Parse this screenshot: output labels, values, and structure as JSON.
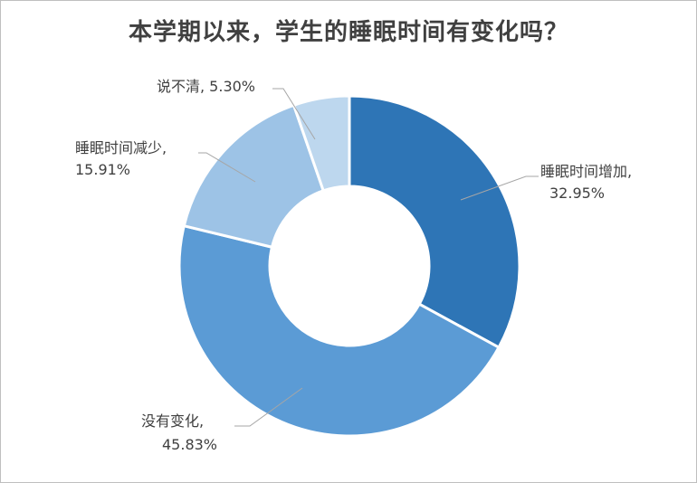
{
  "chart_data": {
    "type": "pie",
    "variant": "donut",
    "title": "本学期以来，学生的睡眠时间有变化吗？",
    "slices": [
      {
        "label": "睡眠时间增加",
        "value": 32.95,
        "display": "32.95%",
        "color": "#2e75b6"
      },
      {
        "label": "没有变化",
        "value": 45.83,
        "display": "45.83%",
        "color": "#5b9bd5"
      },
      {
        "label": "睡眠时间减少",
        "value": 15.91,
        "display": "15.91%",
        "color": "#9dc3e6"
      },
      {
        "label": "说不清",
        "value": 5.3,
        "display": "5.30%",
        "color": "#bdd7ee"
      }
    ],
    "legend": "none",
    "data_labels": "outside with leader lines"
  }
}
